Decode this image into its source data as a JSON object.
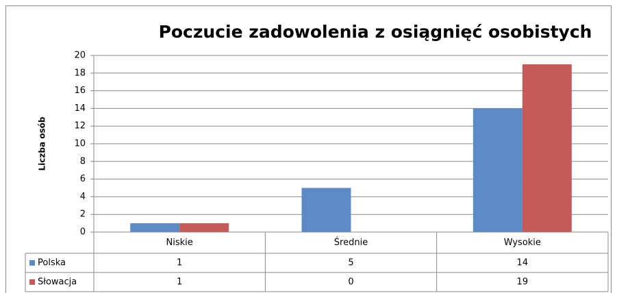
{
  "chart_data": {
    "type": "bar",
    "title": "Poczucie zadowolenia z osiągnięć osobistych",
    "y_label": "Liczba osób",
    "categories": [
      "Niskie",
      "Średnie",
      "Wysokie"
    ],
    "series": [
      {
        "name": "Polska",
        "color": "#5b8ac6",
        "values": [
          1,
          5,
          14
        ]
      },
      {
        "name": "Słowacja",
        "color": "#c55a58",
        "values": [
          1,
          0,
          19
        ]
      }
    ],
    "ylim": [
      0,
      20
    ],
    "yticks": [
      0,
      2,
      4,
      6,
      8,
      10,
      12,
      14,
      16,
      18,
      20
    ],
    "grid": true,
    "data_table": true
  }
}
